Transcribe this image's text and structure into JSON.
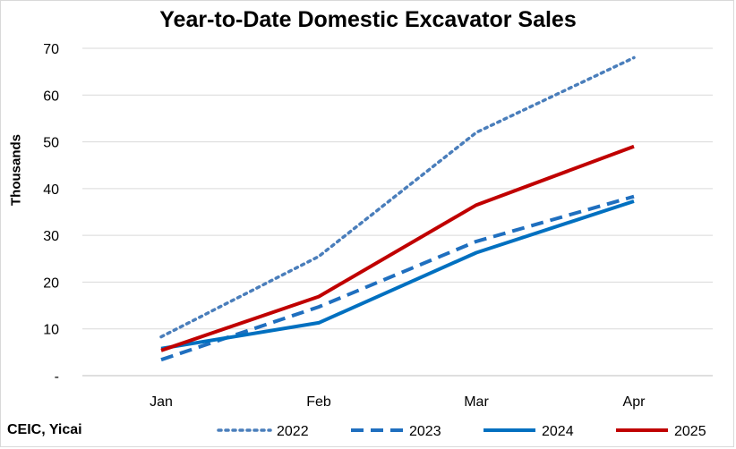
{
  "source": "CEIC, Yicai",
  "chart_data": {
    "type": "line",
    "title": "Year-to-Date Domestic Excavator Sales",
    "xlabel": "",
    "ylabel": "Thousands",
    "categories": [
      "Jan",
      "Feb",
      "Mar",
      "Apr"
    ],
    "ylim": [
      0,
      70
    ],
    "yticks": [
      0,
      10,
      20,
      30,
      40,
      50,
      60,
      70
    ],
    "ytick_labels": [
      "-",
      "10",
      "20",
      "30",
      "40",
      "50",
      "60",
      "70"
    ],
    "grid": true,
    "legend_position": "bottom",
    "series": [
      {
        "name": "2022",
        "values": [
          8.3,
          25.5,
          52.0,
          68.0
        ],
        "color": "#4a7ebb",
        "style": "dotted"
      },
      {
        "name": "2023",
        "values": [
          3.4,
          14.7,
          28.7,
          38.3
        ],
        "color": "#1f6fbf",
        "style": "dashed"
      },
      {
        "name": "2024",
        "values": [
          5.8,
          11.3,
          26.3,
          37.3
        ],
        "color": "#0070c0",
        "style": "solid"
      },
      {
        "name": "2025",
        "values": [
          5.4,
          16.9,
          36.5,
          49.0
        ],
        "color": "#c00000",
        "style": "solid"
      }
    ]
  }
}
